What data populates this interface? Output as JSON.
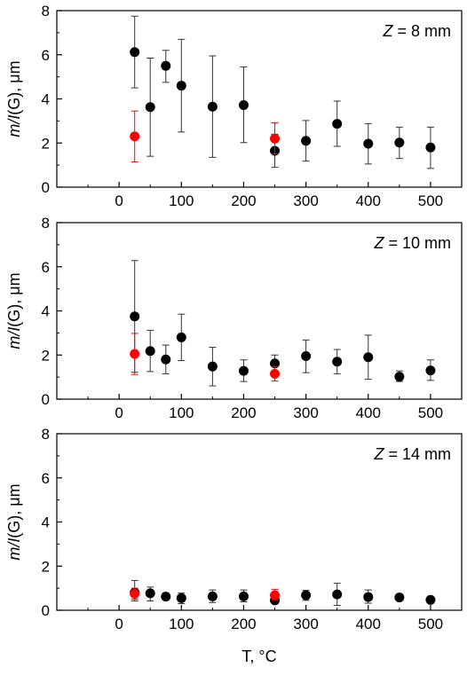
{
  "chart_data": [
    {
      "type": "scatter",
      "annotation": "Z = 8 mm",
      "annotation_var": "Z",
      "annotation_rest": " = 8 mm",
      "ylabel": "m/I(G), μm",
      "ylabel_italic": "m/I",
      "ylabel_rest": "(G), μm",
      "xlabel": "",
      "xlim": [
        -100,
        550
      ],
      "ylim": [
        0,
        8
      ],
      "xticks": [
        0,
        100,
        200,
        300,
        400,
        500
      ],
      "yticks": [
        0,
        2,
        4,
        6,
        8
      ],
      "series": [
        {
          "color": "#000000",
          "x": [
            25,
            50,
            75,
            100,
            150,
            200,
            250,
            300,
            350,
            400,
            450,
            500
          ],
          "y": [
            6.12,
            3.63,
            5.5,
            4.6,
            3.65,
            3.72,
            1.65,
            2.1,
            2.87,
            1.97,
            2.02,
            1.8
          ],
          "err_low": [
            4.5,
            1.4,
            4.75,
            2.5,
            1.35,
            2.02,
            0.9,
            1.18,
            1.85,
            1.05,
            1.3,
            0.85
          ],
          "err_high": [
            7.75,
            5.85,
            6.2,
            6.7,
            5.95,
            5.45,
            2.4,
            3.02,
            3.9,
            2.88,
            2.72,
            2.72
          ]
        },
        {
          "color": "#ff0000",
          "x": [
            25,
            250
          ],
          "y": [
            2.3,
            2.2
          ],
          "err_low": [
            1.15,
            1.5
          ],
          "err_high": [
            3.45,
            2.92
          ]
        }
      ]
    },
    {
      "type": "scatter",
      "annotation": "Z = 10 mm",
      "annotation_var": "Z",
      "annotation_rest": " = 10 mm",
      "ylabel": "m/I(G), μm",
      "ylabel_italic": "m/I",
      "ylabel_rest": "(G), μm",
      "xlabel": "",
      "xlim": [
        -100,
        550
      ],
      "ylim": [
        0,
        8
      ],
      "xticks": [
        0,
        100,
        200,
        300,
        400,
        500
      ],
      "yticks": [
        0,
        2,
        4,
        6,
        8
      ],
      "series": [
        {
          "color": "#000000",
          "x": [
            25,
            50,
            75,
            100,
            150,
            200,
            250,
            300,
            350,
            400,
            450,
            500
          ],
          "y": [
            3.75,
            2.18,
            1.8,
            2.8,
            1.48,
            1.28,
            1.62,
            1.95,
            1.7,
            1.9,
            1.02,
            1.3
          ],
          "err_low": [
            1.22,
            1.25,
            1.15,
            1.75,
            0.6,
            0.8,
            1.25,
            1.2,
            1.15,
            0.9,
            0.8,
            0.85
          ],
          "err_high": [
            6.28,
            3.12,
            2.45,
            3.85,
            2.35,
            1.78,
            2.0,
            2.68,
            2.25,
            2.9,
            1.28,
            1.78
          ]
        },
        {
          "color": "#ff0000",
          "x": [
            25,
            250
          ],
          "y": [
            2.05,
            1.15
          ],
          "err_low": [
            1.12,
            0.82
          ],
          "err_high": [
            2.98,
            1.48
          ]
        }
      ]
    },
    {
      "type": "scatter",
      "annotation": "Z = 14 mm",
      "annotation_var": "Z",
      "annotation_rest": " = 14 mm",
      "ylabel": "m/I(G), μm",
      "ylabel_italic": "m/I",
      "ylabel_rest": "(G), μm",
      "xlabel": "T, °C",
      "xlim": [
        -100,
        550
      ],
      "ylim": [
        0,
        8
      ],
      "xticks": [
        0,
        100,
        200,
        300,
        400,
        500
      ],
      "yticks": [
        0,
        2,
        4,
        6,
        8
      ],
      "series": [
        {
          "color": "#000000",
          "x": [
            25,
            50,
            75,
            100,
            150,
            200,
            250,
            300,
            350,
            400,
            450,
            500
          ],
          "y": [
            0.8,
            0.77,
            0.62,
            0.55,
            0.63,
            0.63,
            0.45,
            0.68,
            0.72,
            0.6,
            0.58,
            0.47
          ],
          "err_low": [
            0.42,
            0.42,
            0.48,
            0.3,
            0.35,
            0.38,
            0.3,
            0.45,
            0.22,
            0.32,
            0.48,
            0.35
          ],
          "err_high": [
            1.35,
            1.05,
            0.78,
            0.78,
            0.92,
            0.92,
            0.62,
            0.9,
            1.22,
            0.92,
            0.68,
            0.58
          ]
        },
        {
          "color": "#ff0000",
          "x": [
            25,
            250
          ],
          "y": [
            0.75,
            0.68
          ],
          "err_low": [
            0.5,
            0.48
          ],
          "err_high": [
            1.0,
            0.95
          ]
        }
      ]
    }
  ]
}
